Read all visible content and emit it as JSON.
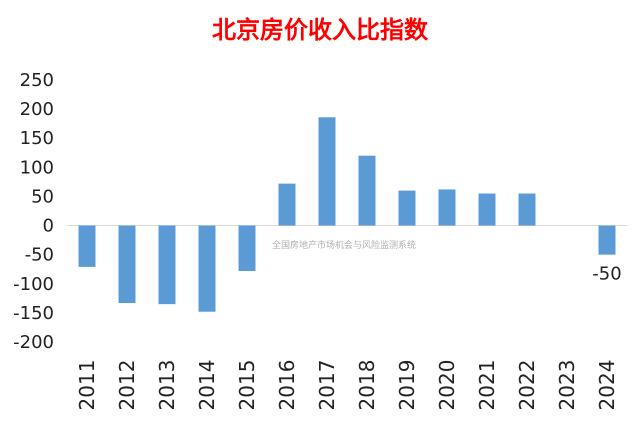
{
  "chart_data": {
    "type": "bar",
    "title": "北京房价收入比指数",
    "categories": [
      "2011",
      "2012",
      "2013",
      "2014",
      "2015",
      "2016",
      "2017",
      "2018",
      "2019",
      "2020",
      "2021",
      "2022",
      "2023",
      "2024"
    ],
    "values": [
      -71,
      -133,
      -135,
      -148,
      -78,
      72,
      186,
      120,
      60,
      62,
      55,
      55,
      null,
      -50
    ],
    "ylim": [
      -200,
      250
    ],
    "yticks": [
      250,
      200,
      150,
      100,
      50,
      0,
      -50,
      -100,
      -150,
      -200
    ],
    "data_labels": {
      "2024": "-50"
    },
    "bar_color": "#5b9bd5",
    "grid": false,
    "watermark": "全国房地产市场机会与风险监测系统"
  }
}
